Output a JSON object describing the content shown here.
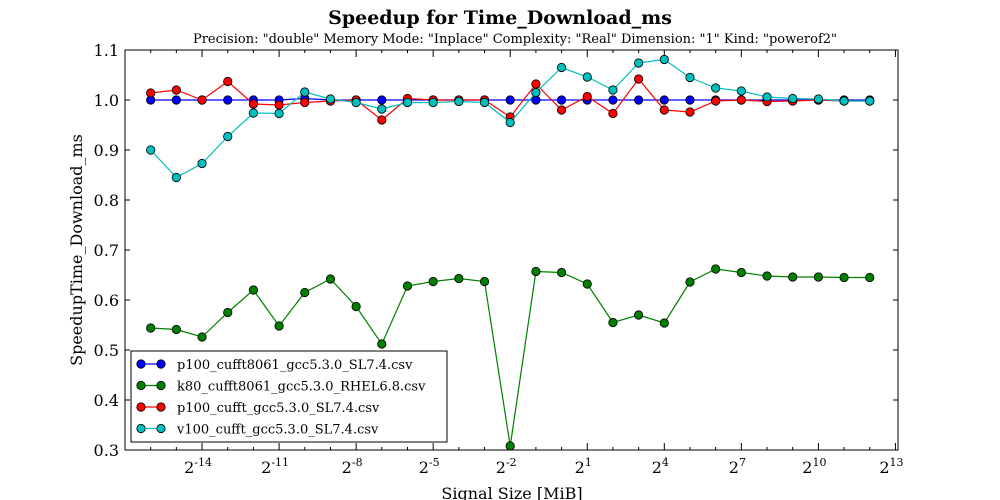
{
  "chart_data": {
    "type": "line",
    "title": "Speedup for Time_Download_ms",
    "subtitle": "Precision: \"double\" Memory Mode: \"Inplace\" Complexity: \"Real\" Dimension: \"1\" Kind: \"powerof2\"",
    "xlabel": "Signal Size [MiB]",
    "ylabel": "SpeedupTime_Download_ms",
    "x_scale": "log2",
    "xlim_log2": [
      -17.0,
      13.1
    ],
    "ylim": [
      0.3,
      1.1
    ],
    "y_ticks": [
      "0.3",
      "0.4",
      "0.5",
      "0.6",
      "0.7",
      "0.8",
      "0.9",
      "1.0",
      "1.1"
    ],
    "x_ticks": [
      {
        "base": "2",
        "exp": "-14",
        "log2": -14
      },
      {
        "base": "2",
        "exp": "-11",
        "log2": -11
      },
      {
        "base": "2",
        "exp": "-8",
        "log2": -8
      },
      {
        "base": "2",
        "exp": "-5",
        "log2": -5
      },
      {
        "base": "2",
        "exp": "-2",
        "log2": -2
      },
      {
        "base": "2",
        "exp": "1",
        "log2": 1
      },
      {
        "base": "2",
        "exp": "4",
        "log2": 4
      },
      {
        "base": "2",
        "exp": "7",
        "log2": 7
      },
      {
        "base": "2",
        "exp": "10",
        "log2": 10
      },
      {
        "base": "2",
        "exp": "13",
        "log2": 13
      }
    ],
    "x_log2": [
      -16,
      -15,
      -14,
      -13,
      -12,
      -11,
      -10,
      -9,
      -8,
      -7,
      -6,
      -5,
      -4,
      -3,
      -2,
      -1,
      0,
      1,
      2,
      3,
      4,
      5,
      6,
      7,
      8,
      9,
      10,
      11,
      12
    ],
    "legend_position": "lower-left",
    "grid": false,
    "series": [
      {
        "name": "p100_cufft8061_gcc5.3.0_SL7.4.csv",
        "color": "#0000ff",
        "values": [
          1.0,
          1.0,
          1.0,
          1.0,
          1.0,
          1.0,
          1.003,
          1.0,
          1.0,
          1.0,
          1.0,
          1.0,
          1.0,
          1.0,
          1.0,
          1.0,
          1.0,
          1.0,
          1.0,
          1.0,
          1.0,
          1.0,
          1.0,
          1.0,
          1.0,
          1.0,
          1.0,
          1.0,
          1.0
        ]
      },
      {
        "name": "k80_cufft8061_gcc5.3.0_RHEL6.8.csv",
        "color": "#007f00",
        "values": [
          0.544,
          0.541,
          0.526,
          0.575,
          0.62,
          0.548,
          0.615,
          0.642,
          0.587,
          0.512,
          0.628,
          0.637,
          0.643,
          0.637,
          0.308,
          0.657,
          0.655,
          0.632,
          0.555,
          0.57,
          0.554,
          0.636,
          0.662,
          0.655,
          0.648,
          0.646,
          0.646,
          0.645,
          0.645
        ]
      },
      {
        "name": "p100_cufft_gcc5.3.0_SL7.4.csv",
        "color": "#ff0000",
        "values": [
          1.014,
          1.02,
          1.0,
          1.037,
          0.992,
          0.99,
          0.995,
          0.998,
          1.0,
          0.96,
          1.003,
          1.0,
          1.0,
          1.0,
          0.966,
          1.032,
          0.98,
          1.007,
          0.973,
          1.042,
          0.98,
          0.976,
          0.998,
          1.0,
          0.997,
          0.998,
          1.0,
          0.998,
          0.998
        ]
      },
      {
        "name": "v100_cufft_gcc5.3.0_SL7.4.csv",
        "color": "#00bfbf",
        "values": [
          0.9,
          0.845,
          0.873,
          0.927,
          0.974,
          0.973,
          1.016,
          1.002,
          0.995,
          0.982,
          0.995,
          0.995,
          0.997,
          0.995,
          0.955,
          1.015,
          1.065,
          1.046,
          1.02,
          1.074,
          1.081,
          1.045,
          1.024,
          1.018,
          1.006,
          1.003,
          1.002,
          0.998,
          0.998
        ]
      }
    ]
  }
}
